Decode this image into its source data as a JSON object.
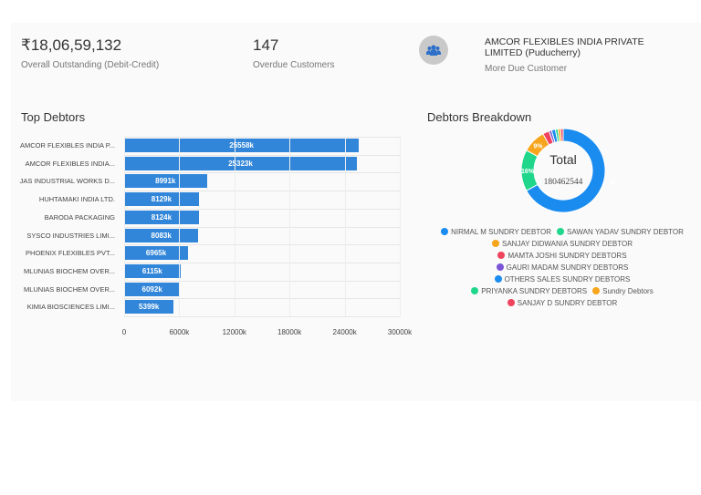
{
  "kpis": [
    {
      "value": "₹18,06,59,132",
      "label": "Overall Outstanding (Debit-Credit)"
    },
    {
      "value": "147",
      "label": "Overdue Customers"
    },
    {
      "value": "AMCOR FLEXIBLES INDIA PRIVATE LIMITED (Puducherry)",
      "label": "More Due Customer",
      "icon": "users-icon"
    }
  ],
  "top_debtors": {
    "title": "Top Debtors"
  },
  "breakdown": {
    "title": "Debtors Breakdown",
    "center_label": "Total",
    "center_value": "180462544"
  },
  "chart_data": [
    {
      "type": "bar",
      "orientation": "horizontal",
      "title": "Top Debtors",
      "categories": [
        "AMCOR FLEXIBLES INDIA P...",
        "AMCOR FLEXIBLES INDIA...",
        "JAS INDUSTRIAL WORKS D...",
        "HUHTAMAKI INDIA LTD.",
        "BARODA PACKAGING",
        "SYSCO INDUSTRIES LIMI...",
        "PHOENIX FLEXIBLES PVT...",
        "MLUNIAS BIOCHEM OVER...",
        "MLUNIAS BIOCHEM OVER...",
        "KIMIA BIOSCIENCES LIMI..."
      ],
      "values": [
        25558,
        25323,
        8991,
        8129,
        8124,
        8083,
        6965,
        6115,
        6092,
        5399
      ],
      "data_labels": [
        "25558k",
        "25323k",
        "8991k",
        "8129k",
        "8124k",
        "8083k",
        "6965k",
        "6115k",
        "6092k",
        "5399k"
      ],
      "xlim": [
        0,
        30000
      ],
      "xticks": [
        "0",
        "6000k",
        "12000k",
        "18000k",
        "24000k",
        "30000k"
      ],
      "grid": true,
      "color": "#3286d9"
    },
    {
      "type": "pie",
      "donut": true,
      "title": "Debtors Breakdown",
      "labels": [
        "NIRMAL M SUNDRY DEBTOR",
        "SAWAN YADAV SUNDRY DEBTOR",
        "SANJAY DIDWANIA SUNDRY DEBTOR",
        "MAMTA JOSHI SUNDRY DEBTORS",
        "GAURI MADAM SUNDRY DEBTORS",
        "OTHERS SALES SUNDRY DEBTORS",
        "PRIYANKA SUNDRY DEBTORS",
        "Sundry Debtors",
        "SANJAY D SUNDRY DEBTOR"
      ],
      "values": [
        67,
        16,
        9,
        2.5,
        1,
        1.5,
        1,
        1,
        1
      ],
      "slice_labels": [
        "67%",
        "16%",
        "9%",
        "",
        "",
        "",
        "",
        "",
        ""
      ],
      "colors": [
        "#1a8cf0",
        "#1fd68b",
        "#f7a51c",
        "#f0445e",
        "#7b55d6",
        "#1a8cf0",
        "#1fd68b",
        "#f7a51c",
        "#f0445e"
      ],
      "legend": "bottom"
    }
  ]
}
